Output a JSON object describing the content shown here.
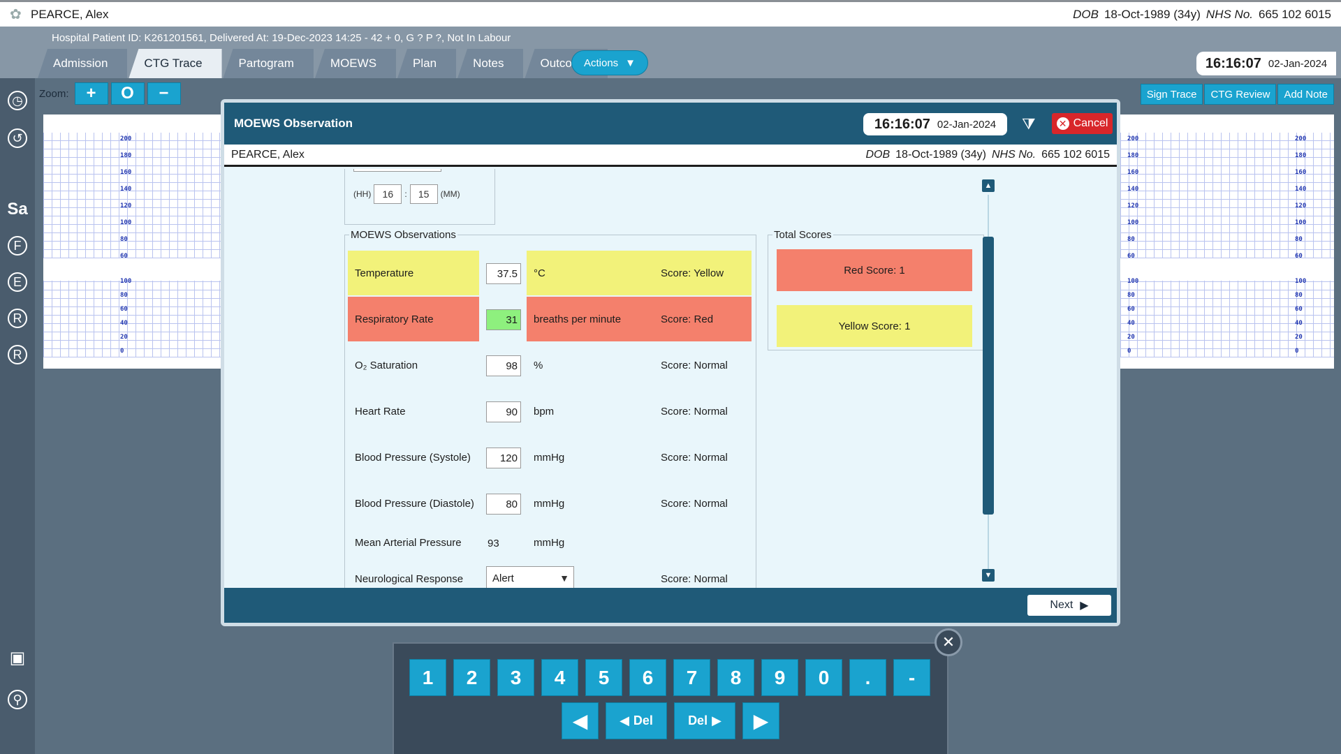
{
  "patient": {
    "name": "PEARCE, Alex",
    "dob_label": "DOB",
    "dob": "18-Oct-1989 (34y)",
    "nhs_label": "NHS No.",
    "nhs": "665 102 6015"
  },
  "header": {
    "hospital_line": "Hospital Patient ID: K261201561, Delivered At: 19-Dec-2023 14:25 - 42 + 0, G ? P ?,   Not In Labour",
    "tabs": [
      "Admission",
      "CTG Trace",
      "Partogram",
      "MOEWS",
      "Plan",
      "Notes",
      "Outcome"
    ],
    "actions_label": "Actions",
    "time": "16:16:07",
    "date": "02-Jan-2024"
  },
  "rail": {
    "letters": [
      "Sa",
      "F",
      "E",
      "R",
      "R"
    ]
  },
  "toolbar": {
    "zoom_label": "Zoom:",
    "zoom_in": "+",
    "zoom_reset": "O",
    "zoom_out": "−",
    "sign_trace": "Sign Trace",
    "ctg_review": "CTG Review",
    "add_note": "Add Note"
  },
  "ctg": {
    "fhr_scale": [
      "200",
      "180",
      "160",
      "140",
      "120",
      "100",
      "80",
      "60"
    ],
    "toco_scale": [
      "100",
      "80",
      "60",
      "40",
      "20",
      "0"
    ]
  },
  "modal": {
    "title": "MOEWS Observation",
    "time": "16:16:07",
    "date": "02-Jan-2024",
    "cancel_label": "Cancel",
    "hh_label": "(HH)",
    "hh": "16",
    "mm": "15",
    "mm_label": "(MM)",
    "obs_legend": "MOEWS Observations",
    "observations": [
      {
        "name": "Temperature",
        "value": "37.5",
        "unit": "°C",
        "score": "Score: Yellow",
        "level": "yellow"
      },
      {
        "name": "Respiratory Rate",
        "value": "31",
        "unit": "breaths per minute",
        "score": "Score: Red",
        "level": "red"
      },
      {
        "name": "O₂ Saturation",
        "value": "98",
        "unit": "%",
        "score": "Score: Normal",
        "level": "normal"
      },
      {
        "name": "Heart Rate",
        "value": "90",
        "unit": "bpm",
        "score": "Score: Normal",
        "level": "normal"
      },
      {
        "name": "Blood Pressure (Systole)",
        "value": "120",
        "unit": "mmHg",
        "score": "Score: Normal",
        "level": "normal"
      },
      {
        "name": "Blood Pressure (Diastole)",
        "value": "80",
        "unit": "mmHg",
        "score": "Score: Normal",
        "level": "normal"
      },
      {
        "name": "Mean Arterial Pressure",
        "value": "93",
        "unit": "mmHg",
        "score": "",
        "level": "normal"
      },
      {
        "name": "Neurological Response",
        "value": "Alert",
        "unit": "",
        "score": "Score: Normal",
        "level": "normal"
      }
    ],
    "totals_legend": "Total Scores",
    "red_score": "Red Score: 1",
    "yellow_score": "Yellow Score: 1",
    "next_label": "Next"
  },
  "keypad": {
    "digits": [
      "1",
      "2",
      "3",
      "4",
      "5",
      "6",
      "7",
      "8",
      "9",
      "0",
      ".",
      "-"
    ],
    "del_label": "Del"
  },
  "colors": {
    "accent": "#1aa3cf",
    "modal_header": "#1f5a78",
    "yellow": "#f2f27a",
    "red": "#f4806c",
    "green": "#8ef07e",
    "cancel": "#d8262a"
  }
}
